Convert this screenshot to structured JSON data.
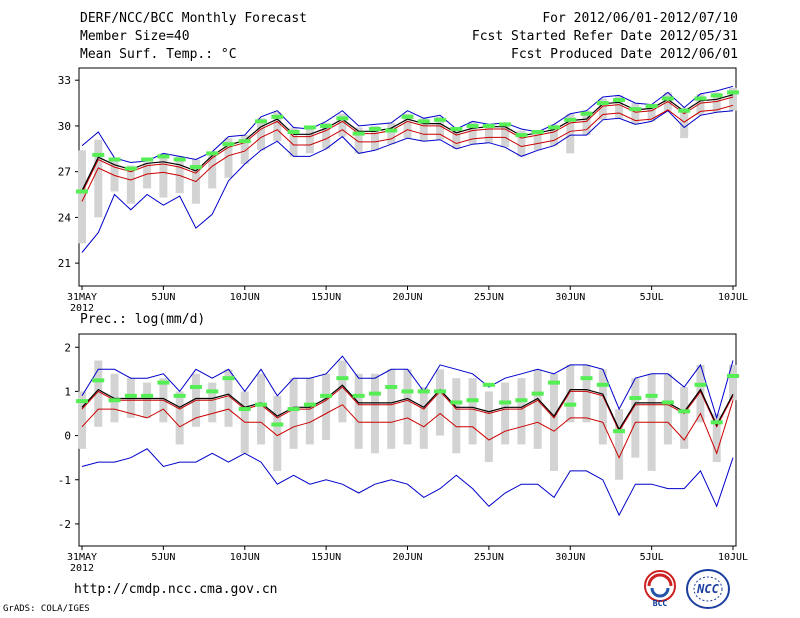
{
  "header": {
    "title": "DERF/NCC/BCC Monthly Forecast",
    "member_size": "Member Size=40",
    "variable": "Mean Surf. Temp.: °C",
    "period": "For 2012/06/01-2012/07/10",
    "start_date": "Fcst Started Refer Date 2012/05/31",
    "produced_date": "Fcst Produced Date 2012/06/01"
  },
  "footer": {
    "url": "http://cmdp.ncc.cma.gov.cn",
    "credit": "GrADS: COLA/IGES",
    "logo_bcc": "BCC",
    "logo_ncc": "NCC"
  },
  "colors": {
    "max_line": "#0000cc",
    "min_line": "#cc0000",
    "mean_line": "#000000",
    "spread_bar": "#d3d3d3",
    "obs_marker": "#55ee55"
  },
  "chart_data": [
    {
      "type": "line",
      "title": "Mean Surf. Temp.: °C",
      "ylim": [
        19.5,
        33.8
      ],
      "yticks": [
        21,
        24,
        27,
        30,
        33
      ],
      "xlabels": [
        "31MAY\n2012",
        "5JUN",
        "10JUN",
        "15JUN",
        "20JUN",
        "25JUN",
        "30JUN",
        "5JUL",
        "10JUL"
      ],
      "x": [
        0,
        1,
        2,
        3,
        4,
        5,
        6,
        7,
        8,
        9,
        10,
        11,
        12,
        13,
        14,
        15,
        16,
        17,
        18,
        19,
        20,
        21,
        22,
        23,
        24,
        25,
        26,
        27,
        28,
        29,
        30,
        31,
        32,
        33,
        34,
        35,
        36,
        37,
        38,
        39,
        40
      ],
      "series": [
        {
          "name": "max",
          "values": [
            28.7,
            29.6,
            27.9,
            27.6,
            27.7,
            28.2,
            28.0,
            27.8,
            28.3,
            29.3,
            29.4,
            30.6,
            31.0,
            29.9,
            29.8,
            30.3,
            31.0,
            30.0,
            30.1,
            30.2,
            31.0,
            30.5,
            30.7,
            29.8,
            30.3,
            30.1,
            30.2,
            29.8,
            29.6,
            30.1,
            30.8,
            31.0,
            31.9,
            32.0,
            31.5,
            31.4,
            32.2,
            31.2,
            32.1,
            32.3,
            32.6
          ]
        },
        {
          "name": "min",
          "values": [
            21.7,
            23.0,
            25.5,
            24.5,
            25.5,
            24.8,
            25.4,
            23.3,
            24.2,
            26.4,
            27.5,
            28.4,
            29.0,
            28.0,
            28.0,
            28.5,
            29.3,
            28.2,
            28.4,
            28.8,
            29.2,
            29.0,
            29.1,
            28.5,
            28.8,
            28.9,
            28.6,
            28.0,
            28.4,
            28.7,
            29.4,
            29.4,
            30.4,
            30.5,
            30.1,
            30.3,
            31.0,
            29.9,
            30.7,
            30.9,
            31.0
          ]
        },
        {
          "name": "mean",
          "values": [
            25.6,
            27.8,
            27.3,
            27.0,
            27.4,
            27.5,
            27.3,
            26.9,
            27.9,
            28.6,
            28.9,
            29.8,
            30.3,
            29.3,
            29.3,
            29.7,
            30.3,
            29.5,
            29.5,
            29.7,
            30.3,
            30.0,
            30.0,
            29.4,
            29.7,
            29.8,
            29.8,
            29.2,
            29.4,
            29.6,
            30.2,
            30.3,
            31.3,
            31.4,
            30.9,
            31.0,
            31.6,
            30.8,
            31.5,
            31.6,
            31.9
          ]
        },
        {
          "name": "obs",
          "values": [
            25.7,
            28.1,
            27.8,
            27.2,
            27.8,
            28.0,
            27.8,
            27.3,
            28.2,
            28.8,
            29.0,
            30.3,
            30.6,
            29.6,
            29.9,
            30.0,
            30.5,
            29.5,
            29.8,
            29.7,
            30.6,
            30.3,
            30.4,
            29.8,
            30.0,
            30.0,
            30.1,
            29.4,
            29.6,
            29.9,
            30.4,
            30.8,
            31.5,
            31.7,
            31.1,
            31.3,
            31.8,
            31.0,
            31.8,
            32.0,
            32.2
          ]
        },
        {
          "name": "spread_high",
          "values": [
            28.4,
            29.1,
            27.8,
            27.4,
            27.6,
            28.2,
            28.0,
            27.8,
            28.3,
            29.2,
            29.4,
            30.5,
            30.9,
            29.9,
            29.8,
            30.2,
            30.8,
            29.9,
            30.0,
            30.2,
            30.8,
            30.5,
            30.6,
            29.8,
            30.3,
            30.1,
            30.2,
            29.7,
            29.6,
            30.1,
            30.8,
            31.0,
            31.8,
            32.0,
            31.5,
            31.4,
            32.2,
            31.2,
            32.1,
            32.2,
            32.5
          ]
        },
        {
          "name": "spread_low",
          "values": [
            22.3,
            24.0,
            25.7,
            24.9,
            25.9,
            25.3,
            25.6,
            24.9,
            25.9,
            26.6,
            27.5,
            28.4,
            29.0,
            28.0,
            28.2,
            28.5,
            29.3,
            28.2,
            28.4,
            28.8,
            29.2,
            29.0,
            29.1,
            28.5,
            28.8,
            28.9,
            28.6,
            28.0,
            28.4,
            28.7,
            28.2,
            29.4,
            30.4,
            30.5,
            30.1,
            30.3,
            31.0,
            29.2,
            30.7,
            30.9,
            31.0
          ]
        }
      ]
    },
    {
      "type": "line",
      "title": "Prec.: log(mm/d)",
      "ylim": [
        -2.5,
        2.3
      ],
      "yticks": [
        -2,
        -1,
        0,
        1,
        2
      ],
      "xlabels": [
        "31MAY\n2012",
        "5JUN",
        "10JUN",
        "15JUN",
        "20JUN",
        "25JUN",
        "30JUN",
        "5JUL",
        "10JUL"
      ],
      "x": [
        0,
        1,
        2,
        3,
        4,
        5,
        6,
        7,
        8,
        9,
        10,
        11,
        12,
        13,
        14,
        15,
        16,
        17,
        18,
        19,
        20,
        21,
        22,
        23,
        24,
        25,
        26,
        27,
        28,
        29,
        30,
        31,
        32,
        33,
        34,
        35,
        36,
        37,
        38,
        39,
        40
      ],
      "series": [
        {
          "name": "max",
          "values": [
            0.9,
            1.5,
            1.5,
            1.3,
            1.3,
            1.4,
            1.0,
            1.5,
            1.3,
            1.5,
            1.0,
            1.5,
            0.9,
            1.3,
            1.3,
            1.4,
            1.8,
            1.3,
            1.3,
            1.5,
            1.5,
            1.0,
            1.6,
            1.5,
            1.4,
            1.1,
            1.3,
            1.4,
            1.5,
            1.4,
            1.6,
            1.6,
            1.5,
            0.6,
            1.3,
            1.4,
            1.4,
            1.1,
            1.6,
            0.4,
            1.7
          ]
        },
        {
          "name": "min",
          "values": [
            -0.7,
            -0.6,
            -0.6,
            -0.5,
            -0.3,
            -0.7,
            -0.6,
            -0.6,
            -0.4,
            -0.6,
            -0.4,
            -0.6,
            -1.1,
            -0.9,
            -1.1,
            -1.0,
            -1.1,
            -1.3,
            -1.1,
            -1.0,
            -1.1,
            -1.4,
            -1.2,
            -0.9,
            -1.2,
            -1.6,
            -1.3,
            -1.1,
            -1.1,
            -1.4,
            -0.8,
            -0.8,
            -1.0,
            -1.8,
            -1.1,
            -1.1,
            -1.2,
            -1.2,
            -0.8,
            -1.6,
            -0.5
          ]
        },
        {
          "name": "mean",
          "values": [
            0.6,
            1.0,
            0.8,
            0.8,
            0.8,
            0.8,
            0.6,
            0.8,
            0.8,
            0.9,
            0.6,
            0.7,
            0.4,
            0.6,
            0.6,
            0.8,
            1.1,
            0.7,
            0.7,
            0.7,
            0.8,
            0.6,
            1.0,
            0.6,
            0.6,
            0.5,
            0.6,
            0.6,
            0.8,
            0.4,
            1.0,
            1.0,
            0.9,
            0.1,
            0.7,
            0.7,
            0.7,
            0.5,
            1.0,
            0.2,
            0.9
          ]
        },
        {
          "name": "mean_min",
          "values": [
            0.2,
            0.6,
            0.6,
            0.5,
            0.4,
            0.6,
            0.2,
            0.4,
            0.5,
            0.6,
            0.3,
            0.3,
            0.0,
            0.2,
            0.3,
            0.5,
            0.7,
            0.3,
            0.3,
            0.3,
            0.4,
            0.2,
            0.5,
            0.2,
            0.2,
            -0.1,
            0.1,
            0.2,
            0.3,
            0.1,
            0.4,
            0.4,
            0.3,
            -0.5,
            0.3,
            0.3,
            0.3,
            -0.1,
            0.5,
            -0.4,
            0.8
          ]
        },
        {
          "name": "obs",
          "values": [
            0.78,
            1.25,
            0.8,
            0.9,
            0.9,
            1.2,
            0.9,
            1.1,
            1.0,
            1.3,
            0.6,
            0.7,
            0.25,
            0.6,
            0.7,
            0.9,
            1.3,
            0.9,
            0.95,
            1.1,
            1.0,
            1.0,
            1.0,
            0.75,
            0.8,
            1.15,
            0.75,
            0.8,
            0.95,
            1.2,
            0.7,
            1.3,
            1.15,
            0.1,
            0.85,
            0.9,
            0.75,
            0.55,
            1.15,
            0.3,
            1.35
          ]
        },
        {
          "name": "spread_high",
          "values": [
            1.0,
            1.7,
            1.4,
            1.3,
            1.2,
            1.3,
            1.0,
            1.4,
            1.2,
            1.5,
            1.0,
            1.4,
            0.9,
            1.3,
            1.3,
            1.4,
            1.7,
            1.4,
            1.4,
            1.5,
            1.5,
            1.1,
            1.5,
            1.3,
            1.3,
            1.0,
            1.2,
            1.3,
            1.5,
            1.4,
            1.6,
            1.6,
            1.5,
            0.6,
            1.3,
            1.4,
            1.4,
            1.1,
            1.6,
            0.5,
            1.6
          ]
        },
        {
          "name": "spread_low",
          "values": [
            -0.3,
            0.2,
            0.3,
            0.4,
            0.4,
            0.3,
            -0.2,
            0.2,
            0.3,
            0.2,
            -0.4,
            -0.2,
            -0.8,
            -0.3,
            -0.2,
            -0.1,
            0.3,
            -0.3,
            -0.4,
            -0.3,
            -0.2,
            -0.3,
            0.0,
            -0.4,
            -0.2,
            -0.6,
            -0.2,
            -0.2,
            -0.3,
            -0.8,
            0.3,
            0.3,
            -0.2,
            -1.0,
            -0.5,
            -0.8,
            -0.2,
            -0.3,
            0.3,
            -0.6,
            0.8
          ]
        }
      ]
    }
  ]
}
